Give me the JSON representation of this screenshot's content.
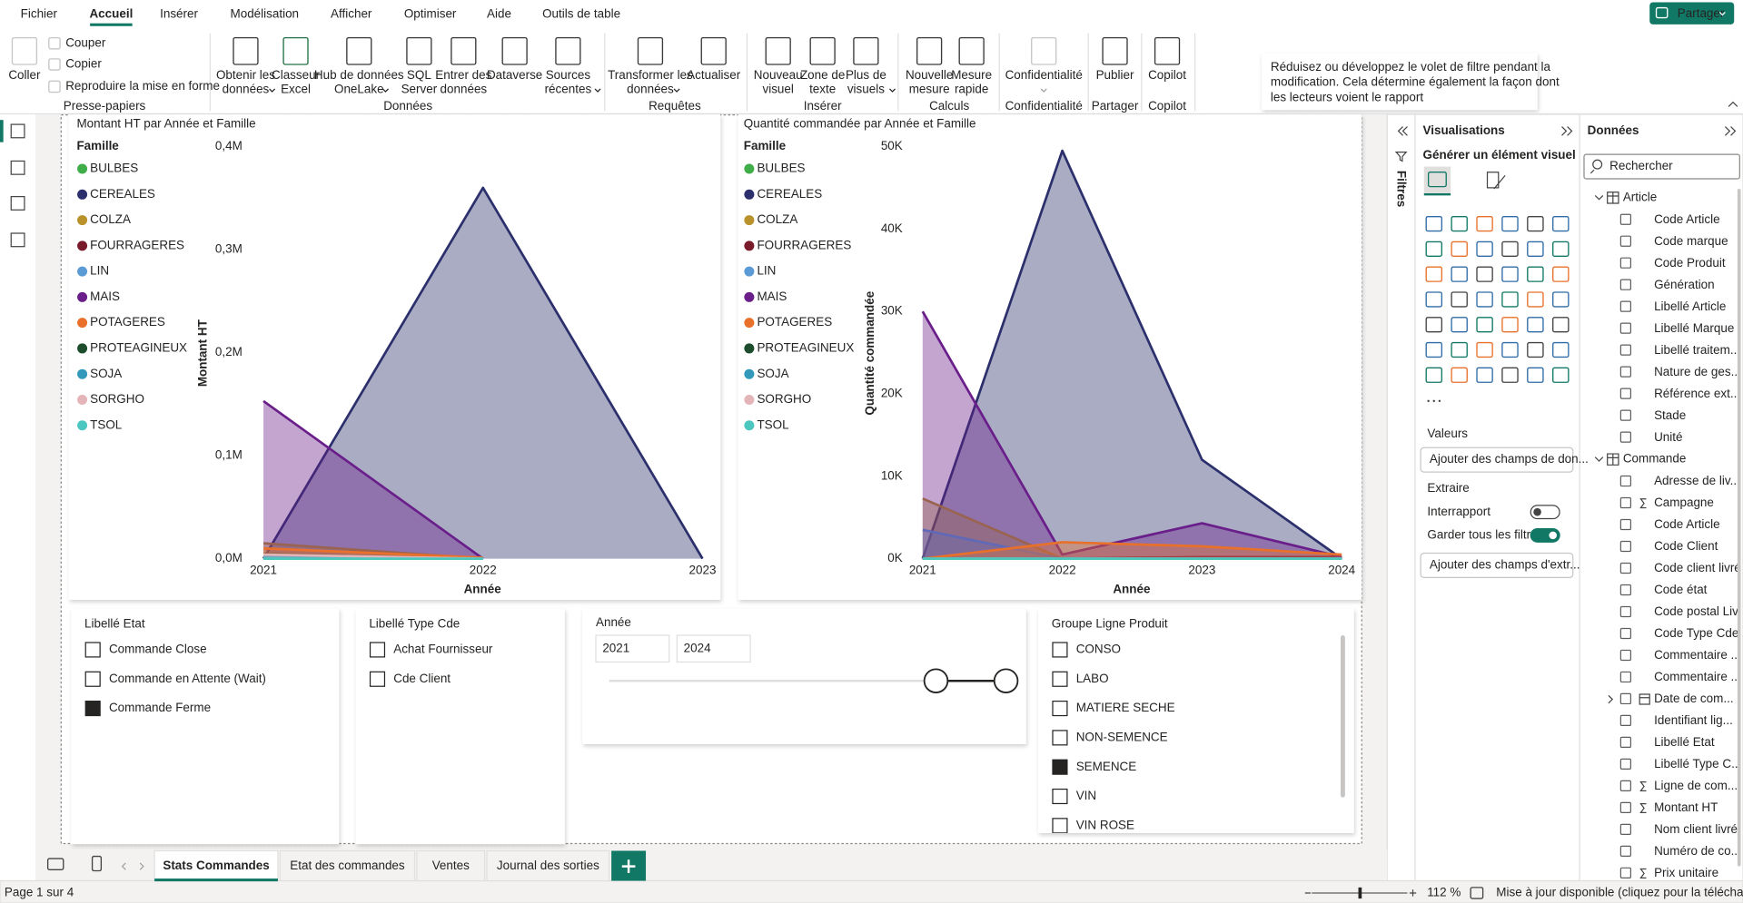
{
  "menu": {
    "items": [
      "Fichier",
      "Accueil",
      "Insérer",
      "Modélisation",
      "Afficher",
      "Optimiser",
      "Aide",
      "Outils de table"
    ],
    "active": 1
  },
  "share": "Partager",
  "ribbon": {
    "groups": [
      {
        "label": "Presse-papiers",
        "disabled": true,
        "buttons": [
          {
            "lines": [
              "Coller"
            ]
          },
          {
            "lines": [
              "Couper"
            ]
          },
          {
            "lines": [
              "Copier"
            ]
          },
          {
            "lines": [
              "Reproduire la mise en forme"
            ]
          }
        ]
      },
      {
        "label": "Données",
        "buttons": [
          {
            "lines": [
              "Obtenir les",
              "données"
            ],
            "dropdown": true
          },
          {
            "lines": [
              "Classeur",
              "Excel"
            ]
          },
          {
            "lines": [
              "Hub de données",
              "OneLake"
            ],
            "dropdown": true
          },
          {
            "lines": [
              "SQL",
              "Server"
            ]
          },
          {
            "lines": [
              "Entrer des",
              "données"
            ]
          },
          {
            "lines": [
              "Dataverse"
            ]
          },
          {
            "lines": [
              "Sources",
              "récentes"
            ],
            "dropdown": true
          }
        ]
      },
      {
        "label": "Requêtes",
        "buttons": [
          {
            "lines": [
              "Transformer les",
              "données"
            ],
            "dropdown": true
          },
          {
            "lines": [
              "Actualiser"
            ]
          }
        ]
      },
      {
        "label": "Insérer",
        "buttons": [
          {
            "lines": [
              "Nouveau",
              "visuel"
            ]
          },
          {
            "lines": [
              "Zone de",
              "texte"
            ]
          },
          {
            "lines": [
              "Plus de",
              "visuels"
            ],
            "dropdown": true
          }
        ]
      },
      {
        "label": "Calculs",
        "buttons": [
          {
            "lines": [
              "Nouvelle",
              "mesure"
            ]
          },
          {
            "lines": [
              "Mesure",
              "rapide"
            ]
          }
        ]
      },
      {
        "label": "Confidentialité",
        "disabled": true,
        "buttons": [
          {
            "lines": [
              "Confidentialité"
            ],
            "dropdown": true
          }
        ]
      },
      {
        "label": "Partager",
        "buttons": [
          {
            "lines": [
              "Publier"
            ]
          }
        ]
      },
      {
        "label": "Copilot",
        "buttons": [
          {
            "lines": [
              "Copilot"
            ]
          }
        ]
      }
    ]
  },
  "tooltip": [
    "Réduisez ou développez le volet de filtre pendant la",
    "modification. Cela détermine également la façon dont",
    "les lecteurs voient le rapport"
  ],
  "chart_data": [
    {
      "type": "area",
      "title": "Montant HT par Année et Famille",
      "legend_title": "Famille",
      "x_label": "Année",
      "y_label": "Montant HT",
      "x": [
        2021,
        2022,
        2023
      ],
      "xlim": [
        2021,
        2023
      ],
      "xticks": [
        2021,
        2022,
        2023
      ],
      "ylim": [
        0,
        400000
      ],
      "yticks": [
        {
          "value": 0,
          "label": "0,0M"
        },
        {
          "value": 100000,
          "label": "0,1M"
        },
        {
          "value": 200000,
          "label": "0,2M"
        },
        {
          "value": 300000,
          "label": "0,3M"
        },
        {
          "value": 400000,
          "label": "0,4M"
        }
      ],
      "grid": false,
      "legend": "left",
      "series": [
        {
          "name": "BULBES",
          "color": "#3fae49",
          "values": [
            5000,
            0,
            null
          ]
        },
        {
          "name": "CEREALES",
          "color": "#2b2f6b",
          "values": [
            0,
            360000,
            0
          ]
        },
        {
          "name": "COLZA",
          "color": "#b9922b",
          "values": [
            15000,
            0,
            null
          ]
        },
        {
          "name": "FOURRAGERES",
          "color": "#7a1b2c",
          "values": [
            2000,
            0,
            null
          ]
        },
        {
          "name": "LIN",
          "color": "#5b9bd5",
          "values": [
            3000,
            0,
            null
          ]
        },
        {
          "name": "MAIS",
          "color": "#6a1e8a",
          "values": [
            153000,
            0,
            null
          ]
        },
        {
          "name": "POTAGERES",
          "color": "#e8702a",
          "values": [
            10000,
            1000,
            null
          ]
        },
        {
          "name": "PROTEAGINEUX",
          "color": "#1d4d2c",
          "values": [
            1000,
            0,
            null
          ]
        },
        {
          "name": "SOJA",
          "color": "#3399bb",
          "values": [
            2000,
            0,
            null
          ]
        },
        {
          "name": "SORGHO",
          "color": "#e3b5b8",
          "values": [
            4000,
            0,
            null
          ]
        },
        {
          "name": "TSOL",
          "color": "#4cc7bf",
          "values": [
            0,
            0,
            null
          ]
        }
      ]
    },
    {
      "type": "area",
      "title": "Quantité commandée par Année et Famille",
      "legend_title": "Famille",
      "x_label": "Année",
      "y_label": "Quantité commandée",
      "x": [
        2021,
        2022,
        2023,
        2024
      ],
      "xlim": [
        2021,
        2024
      ],
      "xticks": [
        2021,
        2022,
        2023,
        2024
      ],
      "ylim": [
        0,
        50000
      ],
      "yticks": [
        {
          "value": 0,
          "label": "0K"
        },
        {
          "value": 10000,
          "label": "10K"
        },
        {
          "value": 20000,
          "label": "20K"
        },
        {
          "value": 30000,
          "label": "30K"
        },
        {
          "value": 40000,
          "label": "40K"
        },
        {
          "value": 50000,
          "label": "50K"
        }
      ],
      "grid": false,
      "legend": "left",
      "series": [
        {
          "name": "BULBES",
          "color": "#3fae49",
          "values": [
            0,
            0,
            0,
            0
          ]
        },
        {
          "name": "CEREALES",
          "color": "#2b2f6b",
          "values": [
            0,
            49500,
            12000,
            0
          ]
        },
        {
          "name": "COLZA",
          "color": "#b9922b",
          "values": [
            7300,
            0,
            0,
            0
          ]
        },
        {
          "name": "FOURRAGERES",
          "color": "#7a1b2c",
          "values": [
            0,
            0,
            200,
            200
          ]
        },
        {
          "name": "LIN",
          "color": "#5b9bd5",
          "values": [
            3500,
            0,
            0,
            0
          ]
        },
        {
          "name": "MAIS",
          "color": "#6a1e8a",
          "values": [
            30000,
            500,
            4300,
            200
          ]
        },
        {
          "name": "POTAGERES",
          "color": "#e8702a",
          "values": [
            0,
            2000,
            1500,
            500
          ]
        },
        {
          "name": "PROTEAGINEUX",
          "color": "#1d4d2c",
          "values": [
            0,
            0,
            0,
            0
          ]
        },
        {
          "name": "SOJA",
          "color": "#3399bb",
          "values": [
            0,
            0,
            0,
            0
          ]
        },
        {
          "name": "SORGHO",
          "color": "#e3b5b8",
          "values": [
            0,
            0,
            0,
            0
          ]
        },
        {
          "name": "TSOL",
          "color": "#4cc7bf",
          "values": [
            0,
            0,
            0,
            0
          ]
        }
      ]
    }
  ],
  "slicers": [
    {
      "title": "Libellé Etat",
      "items": [
        {
          "label": "Commande Close",
          "checked": false
        },
        {
          "label": "Commande en Attente (Wait)",
          "checked": false
        },
        {
          "label": "Commande Ferme",
          "checked": true
        }
      ]
    },
    {
      "title": "Libellé Type Cde",
      "items": [
        {
          "label": "Achat Fournisseur",
          "checked": false
        },
        {
          "label": "Cde Client",
          "checked": false
        }
      ]
    },
    {
      "title": "Groupe Ligne Produit",
      "items": [
        {
          "label": "CONSO",
          "checked": false
        },
        {
          "label": "LABO",
          "checked": false
        },
        {
          "label": "MATIERE SECHE",
          "checked": false
        },
        {
          "label": "NON-SEMENCE",
          "checked": false
        },
        {
          "label": "SEMENCE",
          "checked": true
        },
        {
          "label": "VIN",
          "checked": false
        },
        {
          "label": "VIN ROSE",
          "checked": false
        }
      ]
    }
  ],
  "range_slicer": {
    "title": "Année",
    "from": "2021",
    "to": "2024"
  },
  "filters_pane": {
    "label": "Filtres"
  },
  "visualizations_pane": {
    "title": "Visualisations",
    "subtitle": "Générer un élément visuel",
    "values_label": "Valeurs",
    "values_placeholder": "Ajouter des champs de don...",
    "drill_label": "Extraire",
    "toggles": [
      {
        "label": "Interrapport",
        "on": false
      },
      {
        "label": "Garder tous les filtres",
        "on": true
      }
    ],
    "drill_placeholder": "Ajouter des champs d'extr..."
  },
  "data_pane": {
    "title": "Données",
    "search": "Rechercher",
    "tables": [
      {
        "name": "Article",
        "fields": [
          {
            "name": "Code Article"
          },
          {
            "name": "Code marque"
          },
          {
            "name": "Code Produit"
          },
          {
            "name": "Génération"
          },
          {
            "name": "Libellé Article"
          },
          {
            "name": "Libellé Marque"
          },
          {
            "name": "Libellé traitem..."
          },
          {
            "name": "Nature de ges..."
          },
          {
            "name": "Référence ext..."
          },
          {
            "name": "Stade"
          },
          {
            "name": "Unité"
          }
        ]
      },
      {
        "name": "Commande",
        "fields": [
          {
            "name": "Adresse de liv..."
          },
          {
            "name": "Campagne",
            "sum": true
          },
          {
            "name": "Code Article"
          },
          {
            "name": "Code Client"
          },
          {
            "name": "Code client livré"
          },
          {
            "name": "Code état"
          },
          {
            "name": "Code postal Liv"
          },
          {
            "name": "Code Type Cde"
          },
          {
            "name": "Commentaire ..."
          },
          {
            "name": "Commentaire ..."
          },
          {
            "name": "Date de com...",
            "hierarchy": true
          },
          {
            "name": "Identifiant lig..."
          },
          {
            "name": "Libellé Etat"
          },
          {
            "name": "Libellé Type C..."
          },
          {
            "name": "Ligne de com...",
            "sum": true
          },
          {
            "name": "Montant HT",
            "sum": true
          },
          {
            "name": "Nom client livré"
          },
          {
            "name": "Numéro de co..."
          },
          {
            "name": "Prix unitaire",
            "sum": true
          }
        ]
      }
    ]
  },
  "tabs": {
    "items": [
      "Stats Commandes",
      "Etat des commandes",
      "Ventes",
      "Journal des sorties"
    ],
    "active": 0
  },
  "status": {
    "page": "Page 1 sur 4",
    "zoom": "112 %",
    "update": "Mise à jour disponible (cliquez pour la télécharger)"
  }
}
